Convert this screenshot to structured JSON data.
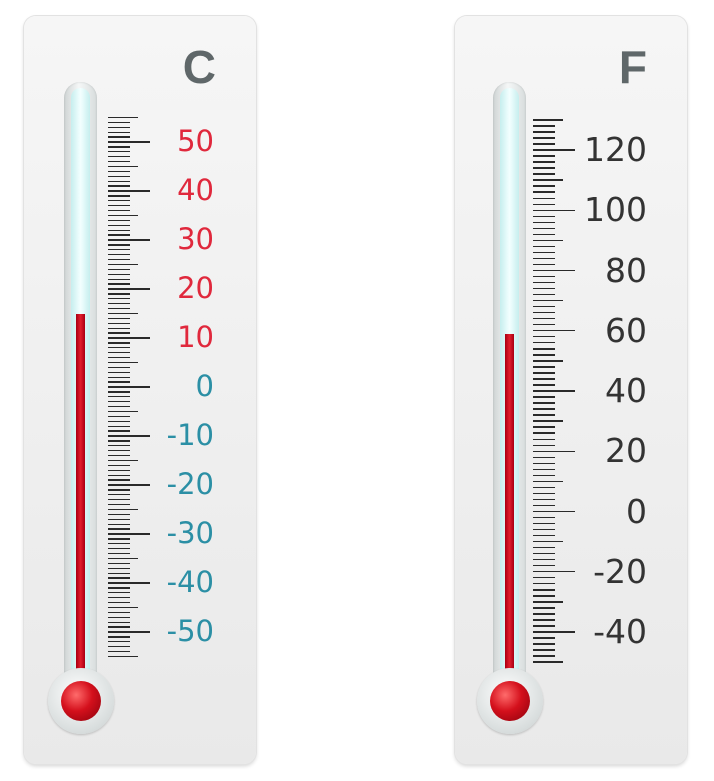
{
  "thermometers": [
    {
      "id": "celsius",
      "unit": "C",
      "labels": [
        "50",
        "40",
        "30",
        "20",
        "10",
        "0",
        "-10",
        "-20",
        "-30",
        "-40",
        "-50"
      ],
      "scale_max": 50,
      "scale_min": -50,
      "major_step": 10,
      "minor_per_major": 10,
      "reading": 15,
      "label_colors": {
        "positive": "#e0283c",
        "zero_and_negative": "#2b8fa5"
      }
    },
    {
      "id": "fahrenheit",
      "unit": "F",
      "labels": [
        "120",
        "100",
        "80",
        "60",
        "40",
        "20",
        "0",
        "-20",
        "-40"
      ],
      "scale_max": 120,
      "scale_min": -40,
      "major_step": 20,
      "minor_per_major": 10,
      "reading": 59,
      "label_colors": {
        "all": "#333333"
      }
    }
  ],
  "colors": {
    "mercury": "#c0101c",
    "unit_text": "#5f6769",
    "ticks": "#2a2a2a"
  }
}
